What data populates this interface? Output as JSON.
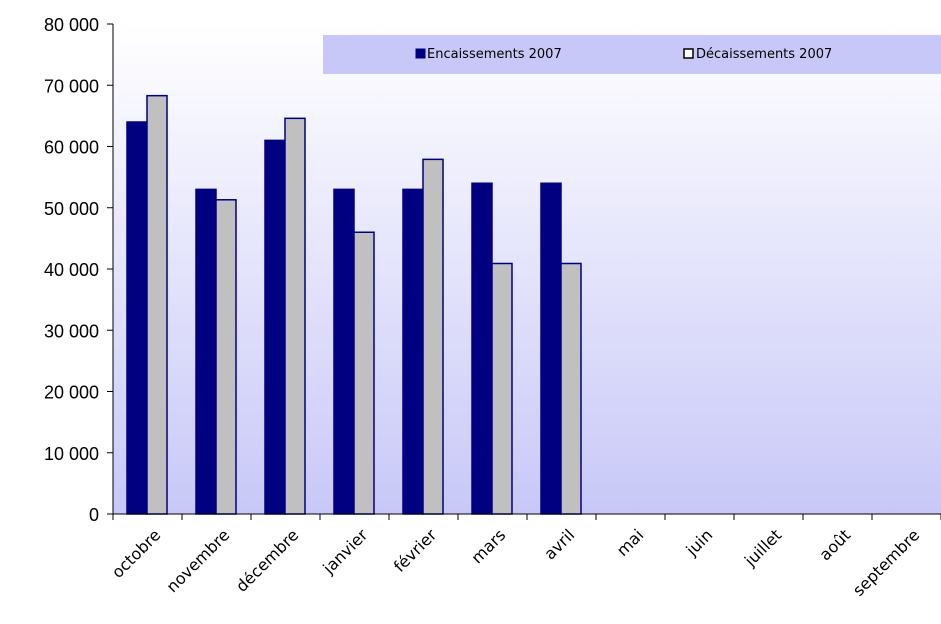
{
  "chart_data": {
    "type": "bar",
    "title": "",
    "xlabel": "",
    "ylabel": "",
    "categories": [
      "octobre",
      "novembre",
      "décembre",
      "janvier",
      "février",
      "mars",
      "avril",
      "mai",
      "juin",
      "juillet",
      "août",
      "septembre"
    ],
    "series": [
      {
        "name": "Encaissements 2007",
        "values": [
          64000,
          53000,
          61000,
          53000,
          53000,
          54000,
          54000,
          null,
          null,
          null,
          null,
          null
        ]
      },
      {
        "name": "Décaissements 2007",
        "values": [
          68300,
          51300,
          64600,
          46000,
          57900,
          40900,
          40900,
          null,
          null,
          null,
          null,
          null
        ]
      }
    ],
    "ylim": [
      0,
      80000
    ],
    "yticks": [
      0,
      10000,
      20000,
      30000,
      40000,
      50000,
      60000,
      70000,
      80000
    ],
    "ytick_labels": [
      "0",
      "10 000",
      "20 000",
      "30 000",
      "40 000",
      "50 000",
      "60 000",
      "70 000",
      "80 000"
    ],
    "legend_position": "top-right",
    "grid": false,
    "colors": {
      "encaissements_fill": "#000080",
      "decaissements_fill": "#c0c0c0",
      "bar_stroke": "#000080",
      "plot_bg_top": "#ffffff",
      "plot_bg_bottom": "#c8c8f8",
      "legend_bg": "#c8c8f8"
    }
  }
}
